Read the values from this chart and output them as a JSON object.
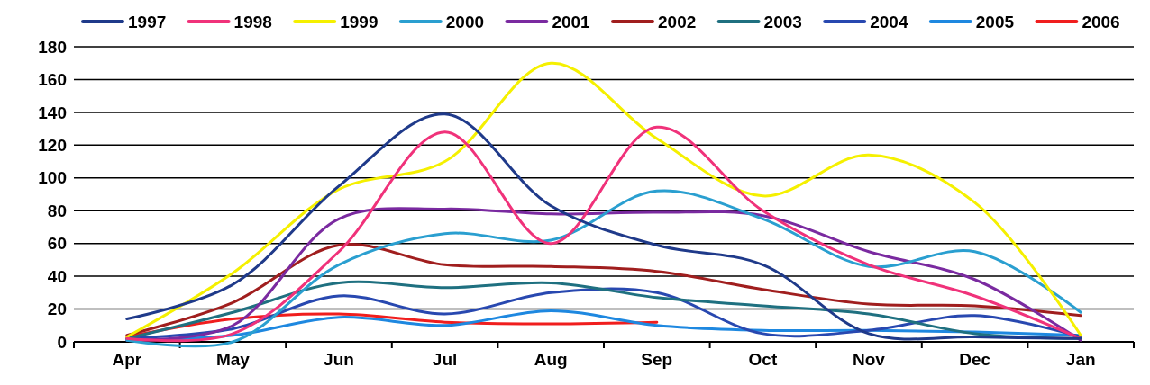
{
  "chart_data": {
    "type": "line",
    "categories": [
      "Apr",
      "May",
      "Jun",
      "Jul",
      "Aug",
      "Sep",
      "Oct",
      "Nov",
      "Dec",
      "Jan"
    ],
    "ylim": [
      0,
      180
    ],
    "yticks": [
      0,
      20,
      40,
      60,
      80,
      100,
      120,
      140,
      160,
      180
    ],
    "grid": "y",
    "legend": "top",
    "marker": "none",
    "line_style": "solid",
    "series": [
      {
        "name": "1997",
        "color": "#1f3a8a",
        "values": [
          14,
          35,
          95,
          139,
          83,
          59,
          47,
          5,
          3,
          2
        ]
      },
      {
        "name": "1998",
        "color": "#f0327a",
        "values": [
          2,
          5,
          55,
          128,
          60,
          131,
          80,
          47,
          28,
          2
        ]
      },
      {
        "name": "1999",
        "color": "#f5f000",
        "values": [
          3,
          42,
          93,
          110,
          170,
          124,
          89,
          114,
          85,
          4
        ]
      },
      {
        "name": "2000",
        "color": "#2a9fd0",
        "values": [
          1,
          0,
          47,
          66,
          62,
          92,
          75,
          46,
          55,
          18
        ]
      },
      {
        "name": "2001",
        "color": "#7a2aa0",
        "values": [
          1,
          10,
          75,
          81,
          78,
          79,
          77,
          55,
          38,
          1
        ]
      },
      {
        "name": "2002",
        "color": "#a01e1e",
        "values": [
          4,
          24,
          59,
          47,
          46,
          43,
          32,
          23,
          22,
          16
        ]
      },
      {
        "name": "2003",
        "color": "#1f7080",
        "values": [
          2,
          18,
          36,
          33,
          36,
          27,
          22,
          17,
          5,
          2
        ]
      },
      {
        "name": "2004",
        "color": "#2848b0",
        "values": [
          2,
          8,
          28,
          17,
          30,
          30,
          5,
          7,
          16,
          3
        ]
      },
      {
        "name": "2005",
        "color": "#1e88e0",
        "values": [
          1,
          4,
          15,
          10,
          19,
          10,
          7,
          7,
          6,
          4
        ]
      },
      {
        "name": "2006",
        "color": "#f01e1e",
        "values": [
          3,
          14,
          17,
          12,
          11,
          12,
          null,
          null,
          null,
          null
        ]
      }
    ]
  }
}
